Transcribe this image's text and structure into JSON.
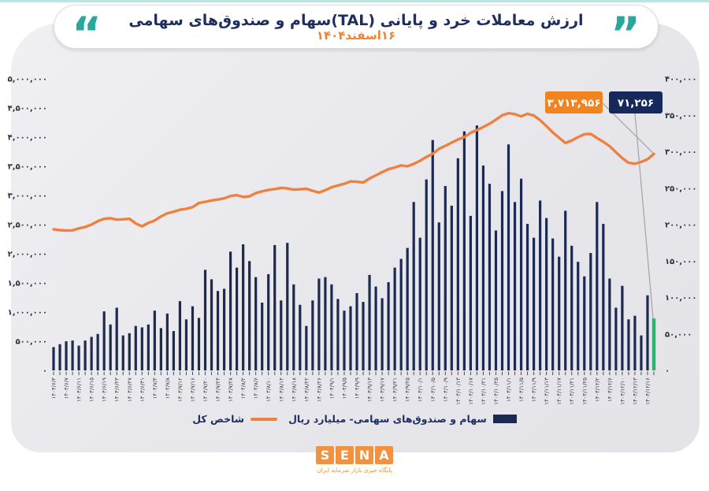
{
  "header": {
    "title": "ارزش معاملات خرد و پایانی (TAL)سهام و صندوق‌های سهامی",
    "subtitle": "۱۶اسفند۱۴۰۴",
    "quote_open": "“",
    "quote_close": "”",
    "accent_teal": "#2aa79d",
    "accent_navy": "#1e2e5f",
    "accent_orange": "#f08231"
  },
  "chart_data": {
    "type": "bar",
    "note": "dual-axis combo: bars = daily trade value (billion rial, right axis), line = total index (left axis)",
    "x_labels": [
      "۱۴۰۴/۶/۳",
      "۱۴۰۴/۶/۷",
      "۱۴۰۴/۶/۱۱",
      "۱۴۰۴/۶/۱۵",
      "۱۴۰۴/۶/۱۹",
      "۱۴۰۴/۶/۲۳",
      "۱۴۰۴/۶/۲۷",
      "۱۴۰۴/۶/۳۱",
      "۱۴۰۴/۷/۴",
      "۱۴۰۴/۷/۸",
      "۱۴۰۴/۷/۱۲",
      "۱۴۰۴/۷/۱۶",
      "۱۴۰۴/۷/۲۰",
      "۱۴۰۴/۷/۲۴",
      "۱۴۰۴/۷/۲۸",
      "۱۴۰۴/۸/۲",
      "۱۴۰۴/۸/۶",
      "۱۴۰۴/۸/۱۰",
      "۱۴۰۴/۸/۱۴",
      "۱۴۰۴/۸/۱۸",
      "۱۴۰۴/۸/۲۲",
      "۱۴۰۴/۸/۲۶",
      "۱۴۰۴/۹/۱",
      "۱۴۰۴/۹/۵",
      "۱۴۰۴/۹/۹",
      "۱۴۰۴/۹/۱۳",
      "۱۴۰۴/۹/۱۷",
      "۱۴۰۴/۹/۲۱",
      "۱۴۰۴/۹/۲۵",
      "۱۴۰۴/۱۰/۱",
      "۱۴۰۴/۱۰/۵",
      "۱۴۰۴/۱۰/۹",
      "۱۴۰۴/۱۰/۱۳",
      "۱۴۰۴/۱۰/۱۷",
      "۱۴۰۴/۱۰/۲۱",
      "۱۴۰۴/۱۰/۲۵",
      "۱۴۰۴/۱۱/۱",
      "۱۴۰۴/۱۱/۵",
      "۱۴۰۴/۱۱/۹",
      "۱۴۰۴/۱۱/۱۳",
      "۱۴۰۴/۱۱/۱۷",
      "۱۴۰۴/۱۱/۲۱",
      "۱۴۰۴/۱۱/۲۵",
      "۱۴۰۴/۱۲/۲",
      "۱۴۰۴/۱۲/۶",
      "۱۴۰۴/۱۲/۱۰",
      "۱۴۰۴/۱۲/۱۳",
      "۱۴۰۴/۱۲/۱۶"
    ],
    "series": [
      {
        "name": "سهام و صندوق‌های سهامی- میلیارد ریال",
        "type": "bar",
        "axis": "right",
        "color": "#1c2950",
        "last_value_color": "#2eb270",
        "values": [
          32000,
          36000,
          40000,
          41000,
          34000,
          41000,
          46000,
          50000,
          81000,
          63000,
          86000,
          48000,
          51000,
          61000,
          59000,
          63000,
          82000,
          58000,
          78000,
          54000,
          95000,
          70000,
          88000,
          72000,
          138000,
          125000,
          109000,
          112000,
          163000,
          141000,
          173000,
          150000,
          128000,
          93000,
          132000,
          172000,
          96000,
          175000,
          118000,
          90000,
          61000,
          96000,
          126000,
          128000,
          118000,
          98000,
          82000,
          88000,
          106000,
          94000,
          131000,
          115000,
          99000,
          121000,
          141000,
          153000,
          168000,
          231000,
          182000,
          262000,
          316000,
          203000,
          253000,
          226000,
          291000,
          328000,
          212000,
          336000,
          281000,
          256000,
          192000,
          246000,
          310000,
          231000,
          263000,
          201000,
          182000,
          233000,
          209000,
          181000,
          156000,
          219000,
          171000,
          149000,
          129000,
          161000,
          231000,
          201000,
          126000,
          86000,
          116000,
          70000,
          75000,
          48000,
          103000,
          71256
        ]
      },
      {
        "name": "شاخص کل",
        "type": "line",
        "axis": "left",
        "color": "#ee8040",
        "values": [
          2420000,
          2405000,
          2398000,
          2402000,
          2435000,
          2458000,
          2500000,
          2560000,
          2600000,
          2610000,
          2585000,
          2590000,
          2600000,
          2520000,
          2470000,
          2530000,
          2570000,
          2640000,
          2695000,
          2720000,
          2755000,
          2770000,
          2800000,
          2870000,
          2890000,
          2915000,
          2930000,
          2950000,
          2990000,
          3005000,
          2975000,
          2985000,
          3040000,
          3070000,
          3095000,
          3110000,
          3130000,
          3120000,
          3100000,
          3105000,
          3115000,
          3080000,
          3050000,
          3090000,
          3140000,
          3170000,
          3200000,
          3240000,
          3235000,
          3222000,
          3290000,
          3345000,
          3400000,
          3450000,
          3480000,
          3515000,
          3500000,
          3540000,
          3595000,
          3660000,
          3715000,
          3800000,
          3850000,
          3905000,
          3960000,
          4000000,
          4075000,
          4120000,
          4175000,
          4230000,
          4300000,
          4375000,
          4410000,
          4395000,
          4355000,
          4400000,
          4370000,
          4290000,
          4190000,
          4080000,
          3990000,
          3900000,
          3940000,
          4000000,
          4050000,
          4055000,
          3985000,
          3920000,
          3845000,
          3740000,
          3640000,
          3560000,
          3545000,
          3575000,
          3620000,
          3713956
        ]
      }
    ],
    "left_axis": {
      "min": 0,
      "max": 5000000,
      "tick_labels_top_to_bottom": [
        "۵,۰۰۰,۰۰۰",
        "۴,۵۰۰,۰۰۰",
        "۴,۰۰۰,۰۰۰",
        "۳,۵۰۰,۰۰۰",
        "۳,۰۰۰,۰۰۰",
        "۲,۵۰۰,۰۰۰",
        "۲,۰۰۰,۰۰۰",
        "۱,۵۰۰,۰۰۰",
        "۱,۰۰۰,۰۰۰",
        "۵۰۰,۰۰۰",
        "۰"
      ]
    },
    "right_axis": {
      "min": 0,
      "max": 400000,
      "tick_labels_top_to_bottom": [
        "۴۰۰,۰۰۰",
        "۳۵۰,۰۰۰",
        "۳۰۰,۰۰۰",
        "۲۵۰,۰۰۰",
        "۲۰۰,۰۰۰",
        "۱۵۰,۰۰۰",
        "۱۰۰,۰۰۰",
        "۵۰,۰۰۰",
        "۰"
      ]
    },
    "grid": false,
    "legend_position": "bottom",
    "annotations": [
      {
        "label": "۳,۷۱۳,۹۵۶",
        "value": 3713956,
        "series": "شاخص کل",
        "box_color": "#f2841f",
        "text_color": "#ffffff"
      },
      {
        "label": "۷۱,۲۵۶",
        "value": 71256,
        "series": "سهام و صندوق‌های سهامی- میلیارد ریال",
        "box_color": "#17295c",
        "text_color": "#ffffff"
      }
    ]
  },
  "legend": {
    "line_label": "شاخص کل",
    "bar_label": "سهام و صندوق‌های سهامی- میلیارد ریال"
  },
  "footer": {
    "logo_letters": [
      "S",
      "E",
      "N",
      "A"
    ],
    "logo_color": "#f29240",
    "tagline": "پایگاه خبری بازار سرمایه ایران"
  }
}
